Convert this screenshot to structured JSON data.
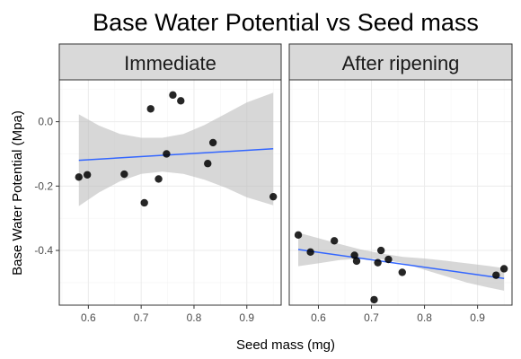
{
  "chart_data": {
    "type": "scatter",
    "title": "Base Water Potential vs Seed mass",
    "xlabel": "Seed mass (mg)",
    "ylabel": "Base Water Potential (Mpa)",
    "xlim": [
      0.545,
      0.965
    ],
    "ylim": [
      -0.57,
      0.13
    ],
    "x_ticks": [
      0.6,
      0.7,
      0.8,
      0.9
    ],
    "y_ticks": [
      -0.4,
      -0.2,
      0.0
    ],
    "x_tick_labels": [
      "0.6",
      "0.7",
      "0.8",
      "0.9"
    ],
    "y_tick_labels": [
      "-0.4",
      "-0.2",
      "0.0"
    ],
    "grid": true,
    "colors": {
      "line": "#3366ff",
      "point": "#000000",
      "ribbon": "#bdbdbd",
      "strip": "#d9d9d9"
    },
    "panels": [
      {
        "label": "Immediate",
        "points": [
          {
            "x": 0.582,
            "y": -0.172
          },
          {
            "x": 0.598,
            "y": -0.165
          },
          {
            "x": 0.668,
            "y": -0.163
          },
          {
            "x": 0.706,
            "y": -0.252
          },
          {
            "x": 0.718,
            "y": 0.04
          },
          {
            "x": 0.733,
            "y": -0.178
          },
          {
            "x": 0.748,
            "y": -0.1
          },
          {
            "x": 0.76,
            "y": 0.083
          },
          {
            "x": 0.775,
            "y": 0.065
          },
          {
            "x": 0.826,
            "y": -0.13
          },
          {
            "x": 0.836,
            "y": -0.065
          },
          {
            "x": 0.95,
            "y": -0.233
          }
        ],
        "fit": [
          {
            "x": 0.582,
            "y": -0.12
          },
          {
            "x": 0.95,
            "y": -0.084
          }
        ],
        "band": {
          "x": [
            0.582,
            0.62,
            0.66,
            0.7,
            0.74,
            0.78,
            0.82,
            0.86,
            0.9,
            0.95
          ],
          "upper": [
            0.023,
            -0.012,
            -0.038,
            -0.05,
            -0.05,
            -0.038,
            -0.01,
            0.025,
            0.06,
            0.09
          ],
          "lower": [
            -0.262,
            -0.22,
            -0.185,
            -0.162,
            -0.155,
            -0.162,
            -0.18,
            -0.205,
            -0.235,
            -0.26
          ]
        }
      },
      {
        "label": "After ripening",
        "points": [
          {
            "x": 0.562,
            "y": -0.352
          },
          {
            "x": 0.585,
            "y": -0.405
          },
          {
            "x": 0.63,
            "y": -0.37
          },
          {
            "x": 0.668,
            "y": -0.415
          },
          {
            "x": 0.672,
            "y": -0.433
          },
          {
            "x": 0.712,
            "y": -0.438
          },
          {
            "x": 0.718,
            "y": -0.4
          },
          {
            "x": 0.732,
            "y": -0.428
          },
          {
            "x": 0.705,
            "y": -0.553
          },
          {
            "x": 0.758,
            "y": -0.468
          },
          {
            "x": 0.935,
            "y": -0.477
          },
          {
            "x": 0.95,
            "y": -0.457
          }
        ],
        "fit": [
          {
            "x": 0.562,
            "y": -0.397
          },
          {
            "x": 0.95,
            "y": -0.487
          }
        ],
        "band": {
          "x": [
            0.562,
            0.6,
            0.64,
            0.68,
            0.72,
            0.76,
            0.8,
            0.84,
            0.88,
            0.92,
            0.95
          ],
          "upper": [
            -0.345,
            -0.362,
            -0.38,
            -0.397,
            -0.41,
            -0.42,
            -0.425,
            -0.432,
            -0.44,
            -0.448,
            -0.455
          ],
          "lower": [
            -0.449,
            -0.44,
            -0.43,
            -0.425,
            -0.427,
            -0.44,
            -0.46,
            -0.48,
            -0.5,
            -0.515,
            -0.525
          ]
        }
      }
    ]
  }
}
